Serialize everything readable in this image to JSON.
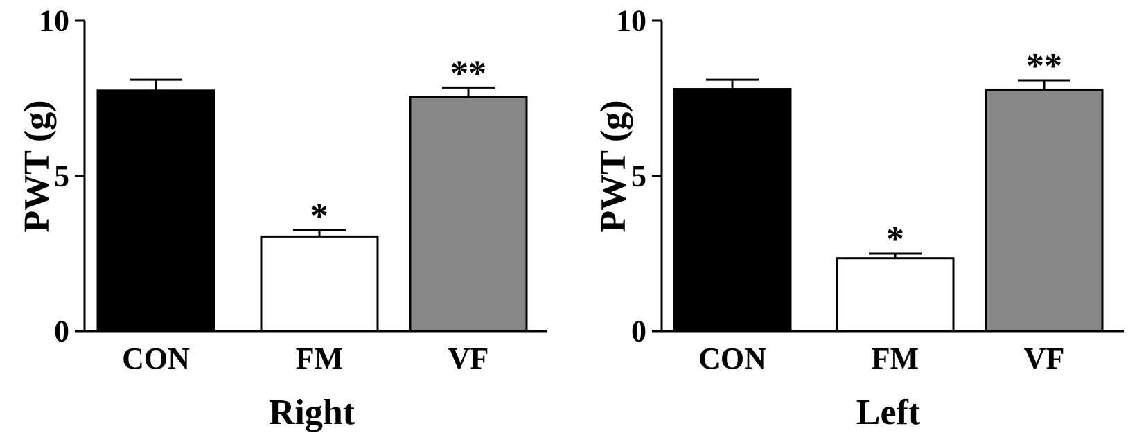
{
  "chart_data": [
    {
      "type": "bar",
      "title": "",
      "xlabel": "Right",
      "ylabel": "PWT (g)",
      "ylim": [
        0,
        10
      ],
      "yticks": [
        0,
        5,
        10
      ],
      "grid": false,
      "categories": [
        "CON",
        "FM",
        "VF"
      ],
      "values": [
        7.75,
        3.05,
        7.55
      ],
      "errors": [
        0.35,
        0.2,
        0.3
      ],
      "significance": [
        "",
        "*",
        "**"
      ],
      "colors": [
        "#000000",
        "#ffffff",
        "#888888"
      ]
    },
    {
      "type": "bar",
      "title": "",
      "xlabel": "Left",
      "ylabel": "PWT (g)",
      "ylim": [
        0,
        10
      ],
      "yticks": [
        0,
        5,
        10
      ],
      "grid": false,
      "categories": [
        "CON",
        "FM",
        "VF"
      ],
      "values": [
        7.8,
        2.35,
        7.78
      ],
      "errors": [
        0.3,
        0.15,
        0.3
      ],
      "significance": [
        "",
        "*",
        "**"
      ],
      "colors": [
        "#000000",
        "#ffffff",
        "#888888"
      ]
    }
  ]
}
